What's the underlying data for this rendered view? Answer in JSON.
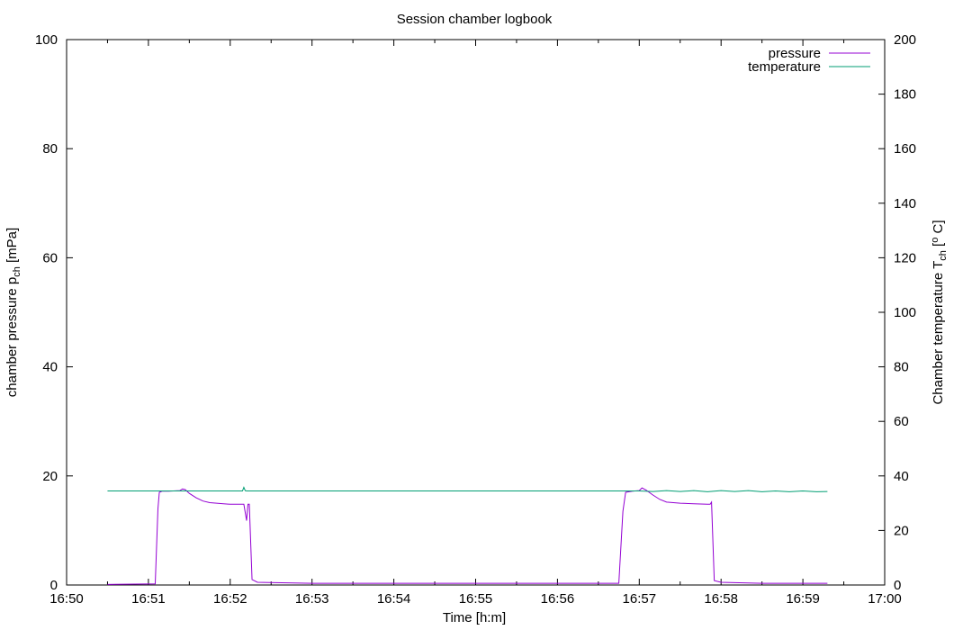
{
  "chart_data": {
    "type": "line",
    "title": "Session chamber logbook",
    "xlabel": "Time [h:m]",
    "ylabel": {
      "main": "chamber pressure p",
      "sub": "ch",
      "unit": " [mPa]"
    },
    "y2label": {
      "main": "Chamber temperature T",
      "sub": "ch",
      "unit": " [°C]",
      "pre": "Chamber temperature T",
      "post1": " [",
      "deg": "o",
      "post2": " C]"
    },
    "x_range": [
      "16:50",
      "17:00"
    ],
    "x_ticks": [
      "16:50",
      "16:51",
      "16:52",
      "16:53",
      "16:54",
      "16:55",
      "16:56",
      "16:57",
      "16:58",
      "16:59",
      "17:00"
    ],
    "ylim": [
      0,
      100
    ],
    "y_ticks": [
      0,
      20,
      40,
      60,
      80,
      100
    ],
    "y2lim": [
      0,
      200
    ],
    "y2_ticks": [
      0,
      20,
      40,
      60,
      80,
      100,
      120,
      140,
      160,
      180,
      200
    ],
    "legend_position": "top-right",
    "grid": false,
    "series": [
      {
        "name": "pressure",
        "axis": "left",
        "color": "#9400d3",
        "points": [
          [
            "16:50:30",
            0.1
          ],
          [
            "16:51:05",
            0.2
          ],
          [
            "16:51:07",
            14
          ],
          [
            "16:51:08",
            17
          ],
          [
            "16:51:10",
            17.2
          ],
          [
            "16:51:15",
            17.2
          ],
          [
            "16:51:23",
            17.3
          ],
          [
            "16:51:25",
            17.6
          ],
          [
            "16:51:27",
            17.5
          ],
          [
            "16:51:30",
            16.8
          ],
          [
            "16:51:35",
            16.0
          ],
          [
            "16:51:40",
            15.4
          ],
          [
            "16:51:45",
            15.1
          ],
          [
            "16:51:50",
            15.0
          ],
          [
            "16:51:55",
            14.9
          ],
          [
            "16:52:00",
            14.8
          ],
          [
            "16:52:05",
            14.8
          ],
          [
            "16:52:10",
            14.8
          ],
          [
            "16:52:12",
            11.8
          ],
          [
            "16:52:13",
            14.8
          ],
          [
            "16:52:14",
            14.8
          ],
          [
            "16:52:16",
            1.0
          ],
          [
            "16:52:20",
            0.5
          ],
          [
            "16:53:00",
            0.3
          ],
          [
            "16:55:00",
            0.3
          ],
          [
            "16:56:45",
            0.3
          ],
          [
            "16:56:48",
            13.5
          ],
          [
            "16:56:50",
            17.0
          ],
          [
            "16:56:55",
            17.2
          ],
          [
            "16:57:00",
            17.3
          ],
          [
            "16:57:02",
            17.8
          ],
          [
            "16:57:05",
            17.4
          ],
          [
            "16:57:10",
            16.5
          ],
          [
            "16:57:15",
            15.7
          ],
          [
            "16:57:20",
            15.2
          ],
          [
            "16:57:30",
            15.0
          ],
          [
            "16:57:40",
            14.9
          ],
          [
            "16:57:50",
            14.8
          ],
          [
            "16:57:52",
            14.8
          ],
          [
            "16:57:53",
            15.2
          ],
          [
            "16:57:55",
            0.8
          ],
          [
            "16:58:00",
            0.5
          ],
          [
            "16:58:30",
            0.3
          ],
          [
            "16:59:00",
            0.3
          ],
          [
            "16:59:18",
            0.3
          ]
        ]
      },
      {
        "name": "temperature",
        "axis": "right",
        "color": "#009e73",
        "points": [
          [
            "16:50:30",
            34.5
          ],
          [
            "16:51:30",
            34.5
          ],
          [
            "16:52:00",
            34.5
          ],
          [
            "16:52:09",
            34.5
          ],
          [
            "16:52:10",
            35.8
          ],
          [
            "16:52:11",
            34.6
          ],
          [
            "16:52:12",
            34.5
          ],
          [
            "16:53:00",
            34.5
          ],
          [
            "16:54:00",
            34.5
          ],
          [
            "16:55:00",
            34.5
          ],
          [
            "16:56:00",
            34.5
          ],
          [
            "16:57:00",
            34.5
          ],
          [
            "16:57:10",
            34.3
          ],
          [
            "16:57:20",
            34.6
          ],
          [
            "16:57:30",
            34.3
          ],
          [
            "16:57:40",
            34.6
          ],
          [
            "16:57:50",
            34.2
          ],
          [
            "16:58:00",
            34.6
          ],
          [
            "16:58:10",
            34.3
          ],
          [
            "16:58:20",
            34.6
          ],
          [
            "16:58:30",
            34.2
          ],
          [
            "16:58:40",
            34.5
          ],
          [
            "16:58:50",
            34.2
          ],
          [
            "16:59:00",
            34.5
          ],
          [
            "16:59:10",
            34.2
          ],
          [
            "16:59:18",
            34.3
          ]
        ]
      }
    ]
  }
}
